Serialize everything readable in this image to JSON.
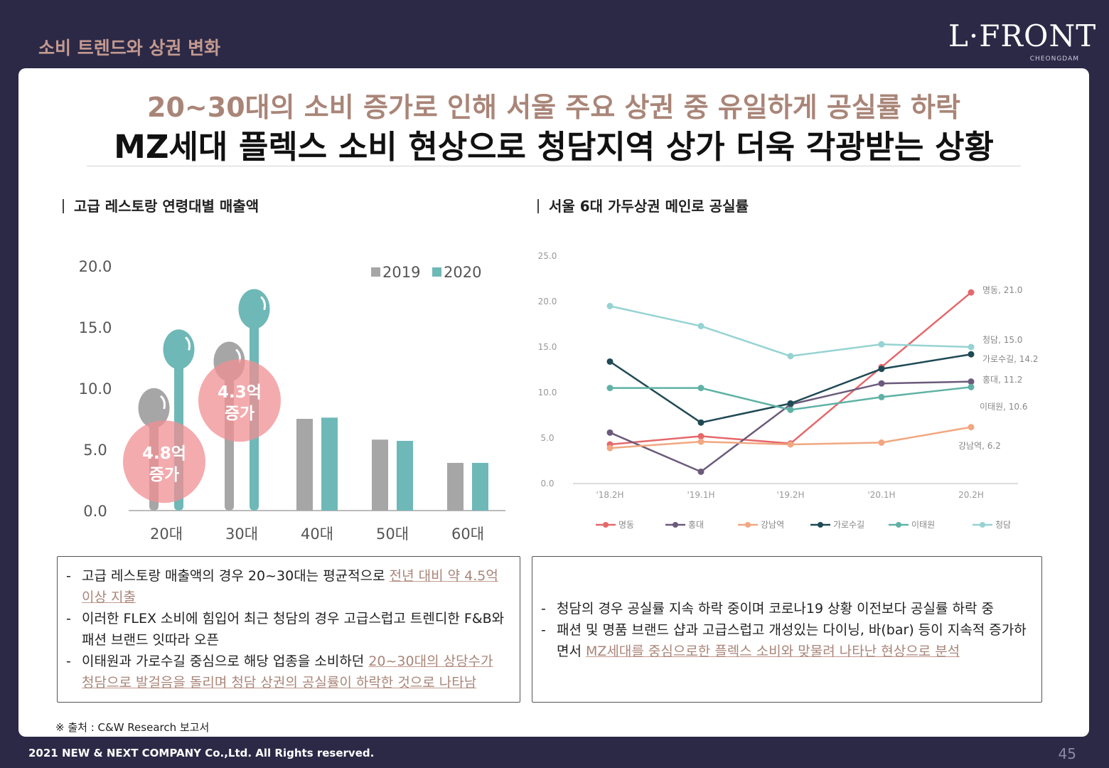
{
  "header": {
    "section_title": "소비 트렌드와 상권 변화",
    "logo_main": "L·FRONT",
    "logo_sub": "CHEONGDAM"
  },
  "headline": {
    "line1": "20~30대의 소비 증가로 인해 서울 주요 상권 중 유일하게 공실률 하락",
    "line2": "MZ세대 플렉스 소비 현상으로 청담지역 상가 더욱 각광받는 상황"
  },
  "left_panel": {
    "title": "고급 레스토랑 연령대별 매출액",
    "bullets": [
      {
        "plain": "고급 레스토랑 매출액의 경우 20~30대는 평균적으로 ",
        "under": "전년 대비 약 4.5억 이상 지출"
      },
      {
        "plain": "이러한 FLEX 소비에 힘입어 최근 청담의 경우 고급스럽고 트렌디한 F&B와 패션 브랜드 잇따라 오픈",
        "under": ""
      },
      {
        "plain": "이태원과 가로수길 중심으로 해당 업종을 소비하던 ",
        "under": "20~30대의 상당수가 청담으로 발걸음을 돌리며 청담 상권의 공실률이 하락한 것으로 나타남"
      }
    ]
  },
  "right_panel": {
    "title": "서울 6대 가두상권 메인로 공실률",
    "bullets": [
      {
        "plain": "청담의 경우 공실률 지속 하락 중이며 코로나19 상황 이전보다 공실률 하락 중",
        "under": ""
      },
      {
        "plain": "패션 및 명품 브랜드 샵과 고급스럽고 개성있는 다이닝, 바(bar) 등이 지속적 증가하면서 ",
        "under": "MZ세대를 중심으로한 플렉스 소비와 맞물려 나타난 현상으로 분석"
      }
    ]
  },
  "chart_data": [
    {
      "type": "bar",
      "categories": [
        "20대",
        "30대",
        "40대",
        "50대",
        "60대"
      ],
      "series": [
        {
          "name": "2019",
          "color": "#a6a6a6",
          "values": [
            8.5,
            12.3,
            7.5,
            5.8,
            3.9
          ]
        },
        {
          "name": "2020",
          "color": "#6fb8b8",
          "values": [
            13.3,
            16.6,
            7.6,
            5.7,
            3.9
          ]
        }
      ],
      "yticks": [
        "0.0",
        "5.0",
        "10.0",
        "15.0",
        "20.0"
      ],
      "ylim": [
        0,
        20
      ],
      "annotations": [
        {
          "category": "20대",
          "text": "4.8억\n증가",
          "value": 4.0
        },
        {
          "category": "30대",
          "text": "4.3억\n증가",
          "value": 9.0
        }
      ],
      "legend": "top-right"
    },
    {
      "type": "line",
      "categories": [
        "'18.2H",
        "'19.1H",
        "'19.2H",
        "'20.1H",
        "20.2H"
      ],
      "yticks": [
        "0.0",
        "5.0",
        "10.0",
        "15.0",
        "20.0",
        "25.0"
      ],
      "ylim": [
        0,
        25
      ],
      "series": [
        {
          "name": "명동",
          "color": "#e5686b",
          "values": [
            4.3,
            5.2,
            4.4,
            12.8,
            21.0
          ],
          "end_label": "명동, 21.0"
        },
        {
          "name": "홍대",
          "color": "#6b5a7b",
          "values": [
            5.6,
            1.3,
            8.7,
            11.0,
            11.2
          ],
          "end_label": "홍대, 11.2"
        },
        {
          "name": "강남역",
          "color": "#f1a781",
          "values": [
            3.9,
            4.6,
            4.3,
            4.5,
            6.2
          ],
          "end_label": "강남역, 6.2"
        },
        {
          "name": "가로수길",
          "color": "#1f4a55",
          "values": [
            13.4,
            6.7,
            8.8,
            12.6,
            14.2
          ],
          "end_label": "가로수길, 14.2"
        },
        {
          "name": "이태원",
          "color": "#5fb2a5",
          "values": [
            10.5,
            10.5,
            8.1,
            9.5,
            10.6
          ],
          "end_label": "이태원, 10.6"
        },
        {
          "name": "청담",
          "color": "#96d3d2",
          "values": [
            19.5,
            17.3,
            14.0,
            15.3,
            15.0
          ],
          "end_label": "청담, 15.0"
        }
      ],
      "legend": "bottom"
    }
  ],
  "source": "※ 출처 : C&W Research 보고서",
  "footer": {
    "copyright": "2021 NEW & NEXT COMPANY Co.,Ltd. All Rights reserved.",
    "page_number": "45"
  }
}
